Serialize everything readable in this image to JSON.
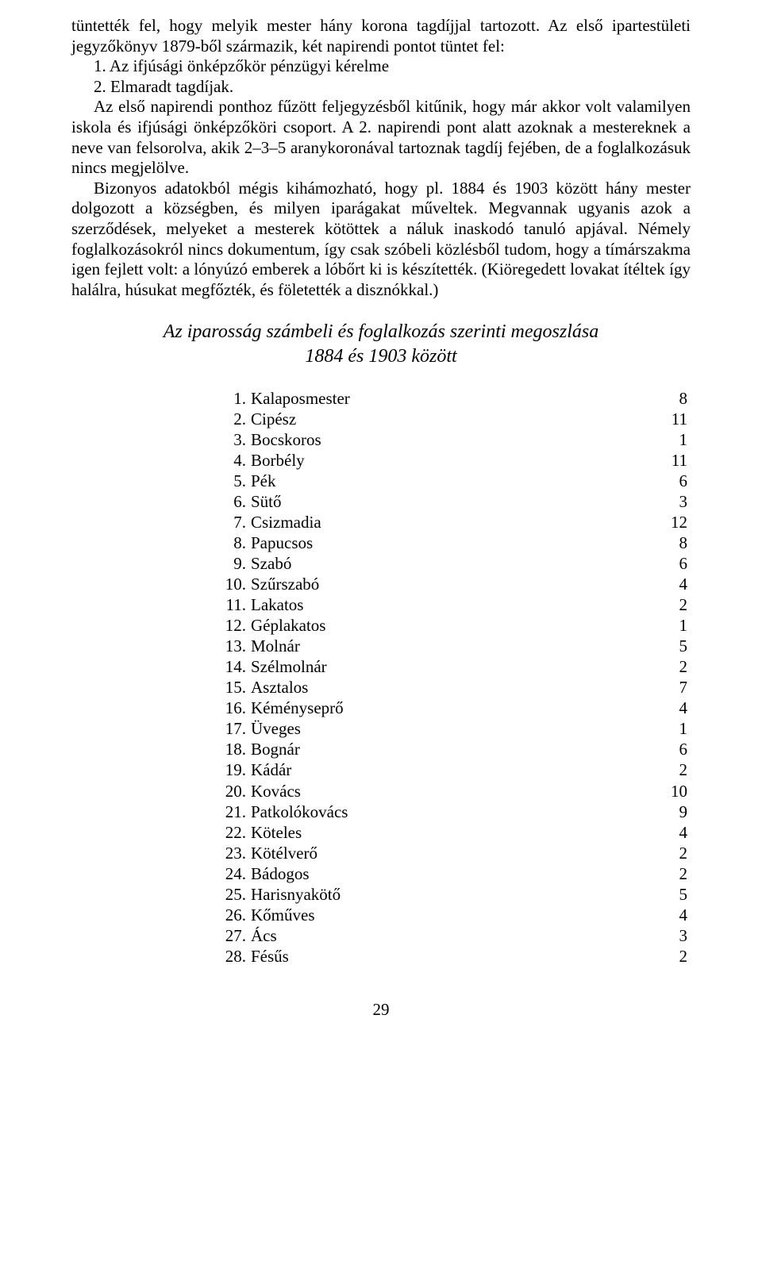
{
  "paragraph": {
    "p1a": "tüntették fel, hogy melyik mester hány korona tagdíjjal tartozott. Az első ipar­testületi jegyzőkönyv 1879-ből származik, két napirendi pontot tüntet fel:",
    "p1b": "1. Az ifjúsági önképzőkör pénzügyi kérelme",
    "p1c": "2. Elmaradt tagdíjak.",
    "p1d": "Az első napirendi ponthoz fűzött feljegyzésből kitűnik, hogy már akkor volt valamilyen iskola és ifjúsági önképzőköri csoport. A 2. napirendi pont alatt azoknak a mestereknek a neve van felsorolva, akik 2–3–5 aranykoronával tartoznak tagdíj fejében, de a foglalkozásuk nincs megjelölve.",
    "p1e": "Bizonyos adatokból mégis kihámozható, hogy pl. 1884 és 1903 között hány mester dolgozott a községben, és milyen iparágakat műveltek. Megvannak ugyanis azok a szerződések, melyeket a mesterek kötöttek a náluk inaskodó tanuló apjával. Némely foglalkozásokról nincs dokumentum, így csak szóbeli közlésből tudom, hogy a tímárszakma igen fejlett volt: a lónyúzó emberek a lóbőrt ki is készítették. (Kiöregedett lovakat ítéltek így halálra, húsukat meg­főzték, és föletették a disznókkal.)"
  },
  "heading": {
    "line1": "Az iparosság számbeli és foglalkozás szerinti megoszlása",
    "line2": "1884 és 1903 között"
  },
  "trades": [
    {
      "n": "1.",
      "name": "Kalaposmester",
      "v": "8"
    },
    {
      "n": "2.",
      "name": "Cipész",
      "v": "11"
    },
    {
      "n": "3.",
      "name": "Bocskoros",
      "v": "1"
    },
    {
      "n": "4.",
      "name": "Borbély",
      "v": "11"
    },
    {
      "n": "5.",
      "name": "Pék",
      "v": "6"
    },
    {
      "n": "6.",
      "name": "Sütő",
      "v": "3"
    },
    {
      "n": "7.",
      "name": "Csizmadia",
      "v": "12"
    },
    {
      "n": "8.",
      "name": "Papucsos",
      "v": "8"
    },
    {
      "n": "9.",
      "name": "Szabó",
      "v": "6"
    },
    {
      "n": "10.",
      "name": "Szűrszabó",
      "v": "4"
    },
    {
      "n": "11.",
      "name": "Lakatos",
      "v": "2"
    },
    {
      "n": "12.",
      "name": "Géplakatos",
      "v": "1"
    },
    {
      "n": "13.",
      "name": "Molnár",
      "v": "5"
    },
    {
      "n": "14.",
      "name": "Szélmolnár",
      "v": "2"
    },
    {
      "n": "15.",
      "name": "Asztalos",
      "v": "7"
    },
    {
      "n": "16.",
      "name": "Kéményseprő",
      "v": "4"
    },
    {
      "n": "17.",
      "name": "Üveges",
      "v": "1"
    },
    {
      "n": "18.",
      "name": "Bognár",
      "v": "6"
    },
    {
      "n": "19.",
      "name": "Kádár",
      "v": "2"
    },
    {
      "n": "20.",
      "name": "Kovács",
      "v": "10"
    },
    {
      "n": "21.",
      "name": "Patkolókovács",
      "v": "9"
    },
    {
      "n": "22.",
      "name": "Köteles",
      "v": "4"
    },
    {
      "n": "23.",
      "name": "Kötélverő",
      "v": "2"
    },
    {
      "n": "24.",
      "name": "Bádogos",
      "v": "2"
    },
    {
      "n": "25.",
      "name": "Harisnyakötő",
      "v": "5"
    },
    {
      "n": "26.",
      "name": "Kőműves",
      "v": "4"
    },
    {
      "n": "27.",
      "name": "Ács",
      "v": "3"
    },
    {
      "n": "28.",
      "name": "Fésűs",
      "v": "2"
    }
  ],
  "pageNumber": "29"
}
